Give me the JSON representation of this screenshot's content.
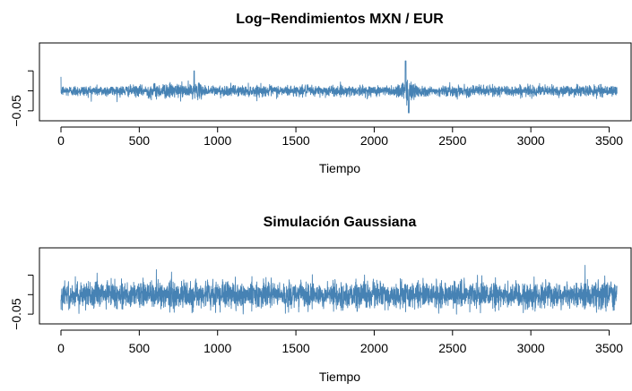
{
  "chart_data": [
    {
      "type": "line",
      "title": "Log−Rendimientos MXN / EUR",
      "xlabel": "Tiempo",
      "ylabel": "",
      "xlim": [
        0,
        3560
      ],
      "ylim": [
        -0.075,
        0.12
      ],
      "x_ticks": [
        0,
        500,
        1000,
        1500,
        2000,
        2500,
        3000,
        3500
      ],
      "x_tick_labels": [
        "0",
        "500",
        "1000",
        "1500",
        "2000",
        "2500",
        "3000",
        "3500"
      ],
      "y_ticks": [
        -0.05,
        0,
        0.05
      ],
      "y_tick_labels": [
        "−0.05",
        "",
        ""
      ],
      "series": [
        {
          "color": "#4682B4",
          "n_points": 3556,
          "description_points": [
            {
              "x": 0,
              "y": 0.035
            },
            {
              "x": 850,
              "y": 0.05
            },
            {
              "x": 2200,
              "y": 0.075
            },
            {
              "x": 2220,
              "y": -0.055
            }
          ]
        }
      ],
      "grid": false
    },
    {
      "type": "line",
      "title": "Simulación Gaussiana",
      "xlabel": "Tiempo",
      "ylabel": "",
      "xlim": [
        0,
        3560
      ],
      "ylim": [
        -0.075,
        0.12
      ],
      "x_ticks": [
        0,
        500,
        1000,
        1500,
        2000,
        2500,
        3000,
        3500
      ],
      "x_tick_labels": [
        "0",
        "500",
        "1000",
        "1500",
        "2000",
        "2500",
        "3000",
        "3500"
      ],
      "y_ticks": [
        -0.05,
        0,
        0.05
      ],
      "y_tick_labels": [
        "−0.05",
        "",
        ""
      ],
      "series": [
        {
          "color": "#4682B4",
          "n_points": 3556
        }
      ],
      "grid": false
    }
  ]
}
